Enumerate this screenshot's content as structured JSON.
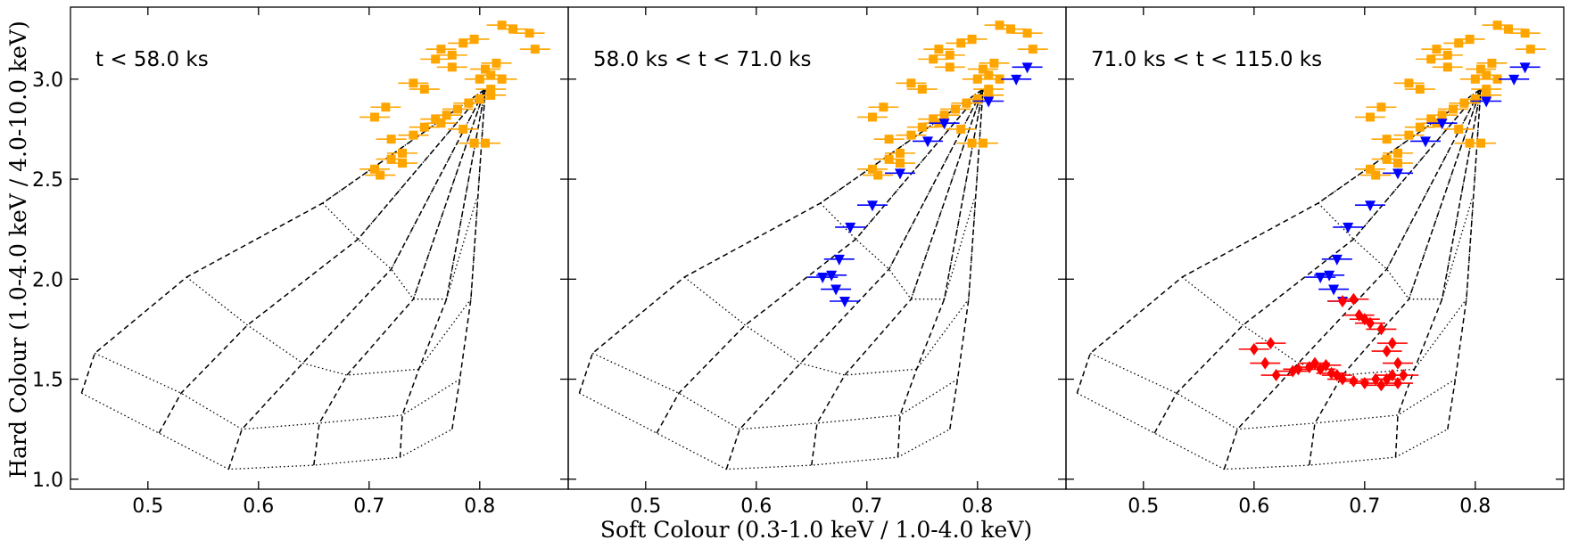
{
  "figure": {
    "xlabel": "Soft Colour (0.3-1.0 keV / 1.0-4.0 keV)",
    "ylabel": "Hard Colour (1.0-4.0 keV / 4.0-10.0 keV)"
  },
  "chart_data": {
    "type": "scatter",
    "xlim": [
      0.43,
      0.88
    ],
    "ylim": [
      0.95,
      3.36
    ],
    "xticks": [
      "0.5",
      "0.6",
      "0.7",
      "0.8"
    ],
    "yticks": [
      "1.0",
      "1.5",
      "2.0",
      "2.5",
      "3.0"
    ],
    "grid": {
      "apex": [
        0.805,
        2.95
      ],
      "dashed_contours": [
        [
          [
            0.44,
            1.43
          ],
          [
            0.452,
            1.63
          ],
          [
            0.535,
            2.01
          ],
          [
            0.658,
            2.38
          ],
          [
            0.805,
            2.95
          ]
        ],
        [
          [
            0.51,
            1.23
          ],
          [
            0.53,
            1.43
          ],
          [
            0.59,
            1.77
          ],
          [
            0.69,
            2.2
          ],
          [
            0.805,
            2.95
          ]
        ],
        [
          [
            0.573,
            1.05
          ],
          [
            0.585,
            1.25
          ],
          [
            0.64,
            1.58
          ],
          [
            0.72,
            2.05
          ],
          [
            0.805,
            2.95
          ]
        ],
        [
          [
            0.65,
            1.07
          ],
          [
            0.655,
            1.28
          ],
          [
            0.68,
            1.52
          ],
          [
            0.74,
            1.9
          ],
          [
            0.805,
            2.95
          ]
        ],
        [
          [
            0.728,
            1.11
          ],
          [
            0.73,
            1.32
          ],
          [
            0.745,
            1.55
          ],
          [
            0.77,
            1.9
          ],
          [
            0.805,
            2.95
          ]
        ],
        [
          [
            0.775,
            1.25
          ],
          [
            0.782,
            1.5
          ],
          [
            0.792,
            1.9
          ],
          [
            0.805,
            2.95
          ]
        ]
      ],
      "dotted_contours": [
        [
          [
            0.44,
            1.43
          ],
          [
            0.51,
            1.23
          ],
          [
            0.573,
            1.05
          ],
          [
            0.65,
            1.07
          ],
          [
            0.728,
            1.11
          ],
          [
            0.775,
            1.25
          ]
        ],
        [
          [
            0.452,
            1.63
          ],
          [
            0.53,
            1.43
          ],
          [
            0.585,
            1.25
          ],
          [
            0.655,
            1.28
          ],
          [
            0.73,
            1.32
          ],
          [
            0.782,
            1.5
          ]
        ],
        [
          [
            0.535,
            2.01
          ],
          [
            0.59,
            1.77
          ],
          [
            0.64,
            1.58
          ],
          [
            0.68,
            1.52
          ],
          [
            0.745,
            1.55
          ],
          [
            0.792,
            1.9
          ]
        ],
        [
          [
            0.658,
            2.38
          ],
          [
            0.69,
            2.2
          ],
          [
            0.72,
            2.05
          ],
          [
            0.74,
            1.9
          ],
          [
            0.77,
            1.9
          ],
          [
            0.797,
            2.4
          ]
        ]
      ]
    },
    "panels": [
      {
        "label": "t < 58.0 ks",
        "series": [
          {
            "marker": "square",
            "color": "#ffa500",
            "points": [
              [
                0.71,
                2.52
              ],
              [
                0.705,
                2.55
              ],
              [
                0.72,
                2.6
              ],
              [
                0.73,
                2.58
              ],
              [
                0.73,
                2.63
              ],
              [
                0.705,
                2.81
              ],
              [
                0.715,
                2.86
              ],
              [
                0.72,
                2.7
              ],
              [
                0.74,
                2.72
              ],
              [
                0.75,
                2.76
              ],
              [
                0.76,
                2.8
              ],
              [
                0.77,
                2.82
              ],
              [
                0.765,
                2.78
              ],
              [
                0.78,
                2.85
              ],
              [
                0.79,
                2.88
              ],
              [
                0.8,
                2.9
              ],
              [
                0.81,
                2.92
              ],
              [
                0.795,
                2.68
              ],
              [
                0.805,
                2.68
              ],
              [
                0.785,
                2.75
              ],
              [
                0.74,
                2.98
              ],
              [
                0.75,
                2.95
              ],
              [
                0.76,
                3.1
              ],
              [
                0.765,
                3.15
              ],
              [
                0.775,
                3.12
              ],
              [
                0.785,
                3.18
              ],
              [
                0.795,
                3.2
              ],
              [
                0.805,
                3.05
              ],
              [
                0.81,
                3.02
              ],
              [
                0.815,
                3.08
              ],
              [
                0.82,
                3.0
              ],
              [
                0.82,
                3.27
              ],
              [
                0.83,
                3.25
              ],
              [
                0.845,
                3.23
              ],
              [
                0.85,
                3.15
              ],
              [
                0.8,
                3.0
              ],
              [
                0.775,
                3.06
              ],
              [
                0.81,
                2.95
              ]
            ]
          }
        ]
      },
      {
        "label": "58.0 ks < t < 71.0 ks",
        "series": [
          {
            "marker": "square",
            "color": "#ffa500",
            "points": [
              [
                0.71,
                2.52
              ],
              [
                0.705,
                2.55
              ],
              [
                0.72,
                2.6
              ],
              [
                0.73,
                2.58
              ],
              [
                0.73,
                2.63
              ],
              [
                0.705,
                2.81
              ],
              [
                0.715,
                2.86
              ],
              [
                0.72,
                2.7
              ],
              [
                0.74,
                2.72
              ],
              [
                0.75,
                2.76
              ],
              [
                0.76,
                2.8
              ],
              [
                0.77,
                2.82
              ],
              [
                0.765,
                2.78
              ],
              [
                0.78,
                2.85
              ],
              [
                0.79,
                2.88
              ],
              [
                0.8,
                2.9
              ],
              [
                0.81,
                2.92
              ],
              [
                0.795,
                2.68
              ],
              [
                0.805,
                2.68
              ],
              [
                0.785,
                2.75
              ],
              [
                0.74,
                2.98
              ],
              [
                0.75,
                2.95
              ],
              [
                0.76,
                3.1
              ],
              [
                0.765,
                3.15
              ],
              [
                0.775,
                3.12
              ],
              [
                0.785,
                3.18
              ],
              [
                0.795,
                3.2
              ],
              [
                0.805,
                3.05
              ],
              [
                0.81,
                3.02
              ],
              [
                0.815,
                3.08
              ],
              [
                0.82,
                3.0
              ],
              [
                0.82,
                3.27
              ],
              [
                0.83,
                3.25
              ],
              [
                0.845,
                3.23
              ],
              [
                0.85,
                3.15
              ],
              [
                0.8,
                3.0
              ],
              [
                0.775,
                3.06
              ],
              [
                0.81,
                2.95
              ]
            ]
          },
          {
            "marker": "triangle-down",
            "color": "#0000ff",
            "points": [
              [
                0.845,
                3.06
              ],
              [
                0.835,
                3.0
              ],
              [
                0.81,
                2.89
              ],
              [
                0.77,
                2.78
              ],
              [
                0.755,
                2.69
              ],
              [
                0.73,
                2.53
              ],
              [
                0.705,
                2.37
              ],
              [
                0.685,
                2.26
              ],
              [
                0.675,
                2.1
              ],
              [
                0.66,
                2.01
              ],
              [
                0.668,
                2.02
              ],
              [
                0.672,
                1.95
              ],
              [
                0.68,
                1.89
              ]
            ]
          }
        ]
      },
      {
        "label": "71.0 ks < t < 115.0 ks",
        "series": [
          {
            "marker": "square",
            "color": "#ffa500",
            "points": [
              [
                0.71,
                2.52
              ],
              [
                0.705,
                2.55
              ],
              [
                0.72,
                2.6
              ],
              [
                0.73,
                2.58
              ],
              [
                0.73,
                2.63
              ],
              [
                0.705,
                2.81
              ],
              [
                0.715,
                2.86
              ],
              [
                0.72,
                2.7
              ],
              [
                0.74,
                2.72
              ],
              [
                0.75,
                2.76
              ],
              [
                0.76,
                2.8
              ],
              [
                0.77,
                2.82
              ],
              [
                0.765,
                2.78
              ],
              [
                0.78,
                2.85
              ],
              [
                0.79,
                2.88
              ],
              [
                0.8,
                2.9
              ],
              [
                0.81,
                2.92
              ],
              [
                0.795,
                2.68
              ],
              [
                0.805,
                2.68
              ],
              [
                0.785,
                2.75
              ],
              [
                0.74,
                2.98
              ],
              [
                0.75,
                2.95
              ],
              [
                0.76,
                3.1
              ],
              [
                0.765,
                3.15
              ],
              [
                0.775,
                3.12
              ],
              [
                0.785,
                3.18
              ],
              [
                0.795,
                3.2
              ],
              [
                0.805,
                3.05
              ],
              [
                0.81,
                3.02
              ],
              [
                0.815,
                3.08
              ],
              [
                0.82,
                3.0
              ],
              [
                0.82,
                3.27
              ],
              [
                0.83,
                3.25
              ],
              [
                0.845,
                3.23
              ],
              [
                0.85,
                3.15
              ],
              [
                0.8,
                3.0
              ],
              [
                0.775,
                3.06
              ],
              [
                0.81,
                2.95
              ]
            ]
          },
          {
            "marker": "triangle-down",
            "color": "#0000ff",
            "points": [
              [
                0.845,
                3.06
              ],
              [
                0.835,
                3.0
              ],
              [
                0.81,
                2.89
              ],
              [
                0.77,
                2.78
              ],
              [
                0.755,
                2.69
              ],
              [
                0.73,
                2.53
              ],
              [
                0.705,
                2.37
              ],
              [
                0.685,
                2.26
              ],
              [
                0.675,
                2.1
              ],
              [
                0.66,
                2.01
              ],
              [
                0.668,
                2.02
              ],
              [
                0.672,
                1.95
              ],
              [
                0.68,
                1.89
              ]
            ]
          },
          {
            "marker": "diamond",
            "color": "#ff0000",
            "points": [
              [
                0.68,
                1.89
              ],
              [
                0.69,
                1.9
              ],
              [
                0.695,
                1.82
              ],
              [
                0.7,
                1.8
              ],
              [
                0.705,
                1.78
              ],
              [
                0.715,
                1.75
              ],
              [
                0.725,
                1.68
              ],
              [
                0.72,
                1.64
              ],
              [
                0.73,
                1.58
              ],
              [
                0.725,
                1.52
              ],
              [
                0.6,
                1.65
              ],
              [
                0.615,
                1.68
              ],
              [
                0.61,
                1.58
              ],
              [
                0.62,
                1.52
              ],
              [
                0.635,
                1.54
              ],
              [
                0.65,
                1.56
              ],
              [
                0.655,
                1.58
              ],
              [
                0.66,
                1.55
              ],
              [
                0.665,
                1.57
              ],
              [
                0.67,
                1.53
              ],
              [
                0.675,
                1.52
              ],
              [
                0.68,
                1.5
              ],
              [
                0.69,
                1.49
              ],
              [
                0.7,
                1.48
              ],
              [
                0.71,
                1.5
              ],
              [
                0.715,
                1.47
              ],
              [
                0.72,
                1.5
              ],
              [
                0.73,
                1.48
              ],
              [
                0.735,
                1.52
              ],
              [
                0.64,
                1.55
              ]
            ]
          }
        ]
      }
    ]
  }
}
